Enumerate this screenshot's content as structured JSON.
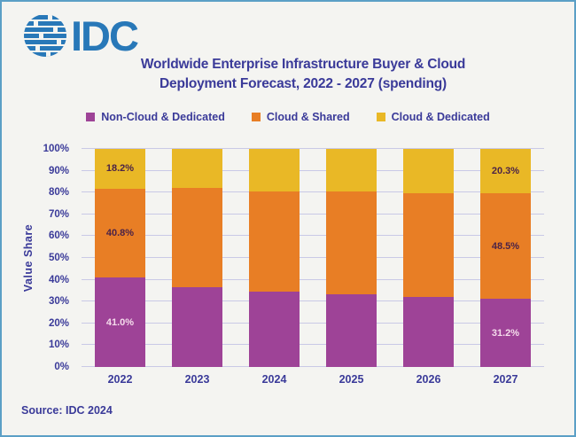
{
  "logo": {
    "text": "IDC",
    "color": "#2878B8"
  },
  "title": {
    "line1": "Worldwide Enterprise Infrastructure Buyer & Cloud",
    "line2": "Deployment Forecast, 2022 - 2027 (spending)"
  },
  "legend": [
    {
      "label": "Non-Cloud & Dedicated",
      "color": "#9E4397"
    },
    {
      "label": "Cloud & Shared",
      "color": "#E87E25"
    },
    {
      "label": "Cloud & Dedicated",
      "color": "#E9B826"
    }
  ],
  "source": "Source: IDC 2024",
  "chart_data": {
    "type": "bar",
    "subtype": "stacked-100",
    "title": "Worldwide Enterprise Infrastructure Buyer & Cloud Deployment Forecast, 2022 - 2027 (spending)",
    "categories": [
      "2022",
      "2023",
      "2024",
      "2025",
      "2026",
      "2027"
    ],
    "series": [
      {
        "name": "Non-Cloud & Dedicated",
        "color": "#9E4397",
        "label_color": "#F5DCEC",
        "values": [
          41.0,
          36.5,
          34.5,
          33.5,
          32.3,
          31.2
        ]
      },
      {
        "name": "Cloud & Shared",
        "color": "#E87E25",
        "label_color": "#4B2347",
        "values": [
          40.8,
          45.5,
          46.2,
          46.8,
          47.4,
          48.5
        ]
      },
      {
        "name": "Cloud & Dedicated",
        "color": "#E9B826",
        "label_color": "#4B2347",
        "values": [
          18.2,
          18.0,
          19.3,
          19.7,
          20.3,
          20.3
        ]
      }
    ],
    "label_visible": [
      true,
      false,
      false,
      false,
      false,
      true
    ],
    "visible_data_labels": {
      "2022": {
        "Non-Cloud & Dedicated": "41.0%",
        "Cloud & Shared": "40.8%",
        "Cloud & Dedicated": "18.2%"
      },
      "2027": {
        "Non-Cloud & Dedicated": "31.2%",
        "Cloud & Shared": "48.5%",
        "Cloud & Dedicated": "20.3%"
      }
    },
    "xlabel": "",
    "ylabel": "Value Share",
    "ylim": [
      0,
      100
    ],
    "yticks": [
      "0%",
      "10%",
      "20%",
      "30%",
      "40%",
      "50%",
      "60%",
      "70%",
      "80%",
      "90%",
      "100%"
    ],
    "grid": true,
    "gridline_color": "#C9C9E6",
    "legend_position": "top"
  }
}
